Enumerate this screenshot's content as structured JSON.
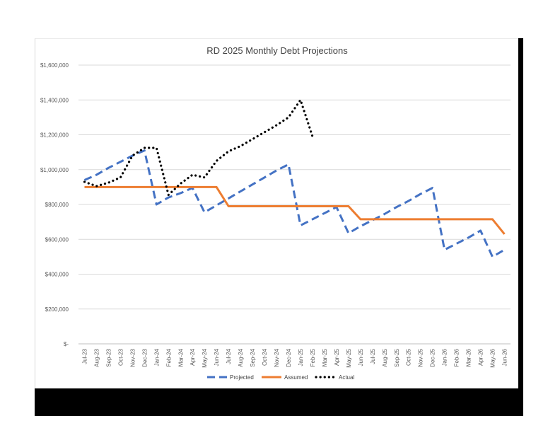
{
  "chart_data": {
    "type": "line",
    "title": "RD 2025 Monthly Debt Projections",
    "xlabel": "",
    "ylabel": "",
    "ylim": [
      0,
      1600000
    ],
    "yticks": [
      0,
      200000,
      400000,
      600000,
      800000,
      1000000,
      1200000,
      1400000,
      1600000
    ],
    "ytick_labels": [
      "$-",
      "$200,000",
      "$400,000",
      "$600,000",
      "$800,000",
      "$1,000,000",
      "$1,200,000",
      "$1,400,000",
      "$1,600,000"
    ],
    "grid": true,
    "legend_position": "bottom",
    "categories": [
      "Jul-23",
      "Aug-23",
      "Sep-23",
      "Oct-23",
      "Nov-23",
      "Dec-23",
      "Jan-24",
      "Feb-24",
      "Mar-24",
      "Apr-24",
      "May-24",
      "Jun-24",
      "Jul-24",
      "Aug-24",
      "Sep-24",
      "Oct-24",
      "Nov-24",
      "Dec-24",
      "Jan-25",
      "Feb-25",
      "Mar-25",
      "Apr-25",
      "May-25",
      "Jun-25",
      "Jul-25",
      "Aug-25",
      "Sep-25",
      "Oct-25",
      "Nov-25",
      "Dec-25",
      "Jan-26",
      "Feb-26",
      "Mar-26",
      "Apr-26",
      "May-26",
      "Jun-26"
    ],
    "series": [
      {
        "name": "Projected",
        "color": "#4472C4",
        "style": "dashed",
        "values": [
          940000,
          970000,
          1010000,
          1045000,
          1080000,
          1110000,
          800000,
          840000,
          865000,
          895000,
          755000,
          795000,
          835000,
          875000,
          915000,
          955000,
          995000,
          1030000,
          680000,
          715000,
          750000,
          785000,
          635000,
          675000,
          710000,
          745000,
          785000,
          820000,
          860000,
          895000,
          540000,
          575000,
          610000,
          650000,
          500000,
          540000
        ]
      },
      {
        "name": "Assumed",
        "color": "#ED7D31",
        "style": "solid",
        "values": [
          900000,
          900000,
          900000,
          900000,
          900000,
          900000,
          900000,
          900000,
          900000,
          900000,
          900000,
          900000,
          790000,
          790000,
          790000,
          790000,
          790000,
          790000,
          790000,
          790000,
          790000,
          790000,
          790000,
          715000,
          715000,
          715000,
          715000,
          715000,
          715000,
          715000,
          715000,
          715000,
          715000,
          715000,
          715000,
          630000
        ]
      },
      {
        "name": "Actual",
        "color": "#000000",
        "style": "dotted",
        "values": [
          930000,
          905000,
          925000,
          955000,
          1080000,
          1125000,
          1125000,
          855000,
          920000,
          970000,
          955000,
          1050000,
          1105000,
          1135000,
          1175000,
          1215000,
          1255000,
          1300000,
          1400000,
          1190000,
          null,
          null,
          null,
          null,
          null,
          null,
          null,
          null,
          null,
          null,
          null,
          null,
          null,
          null,
          null,
          null
        ]
      }
    ]
  }
}
